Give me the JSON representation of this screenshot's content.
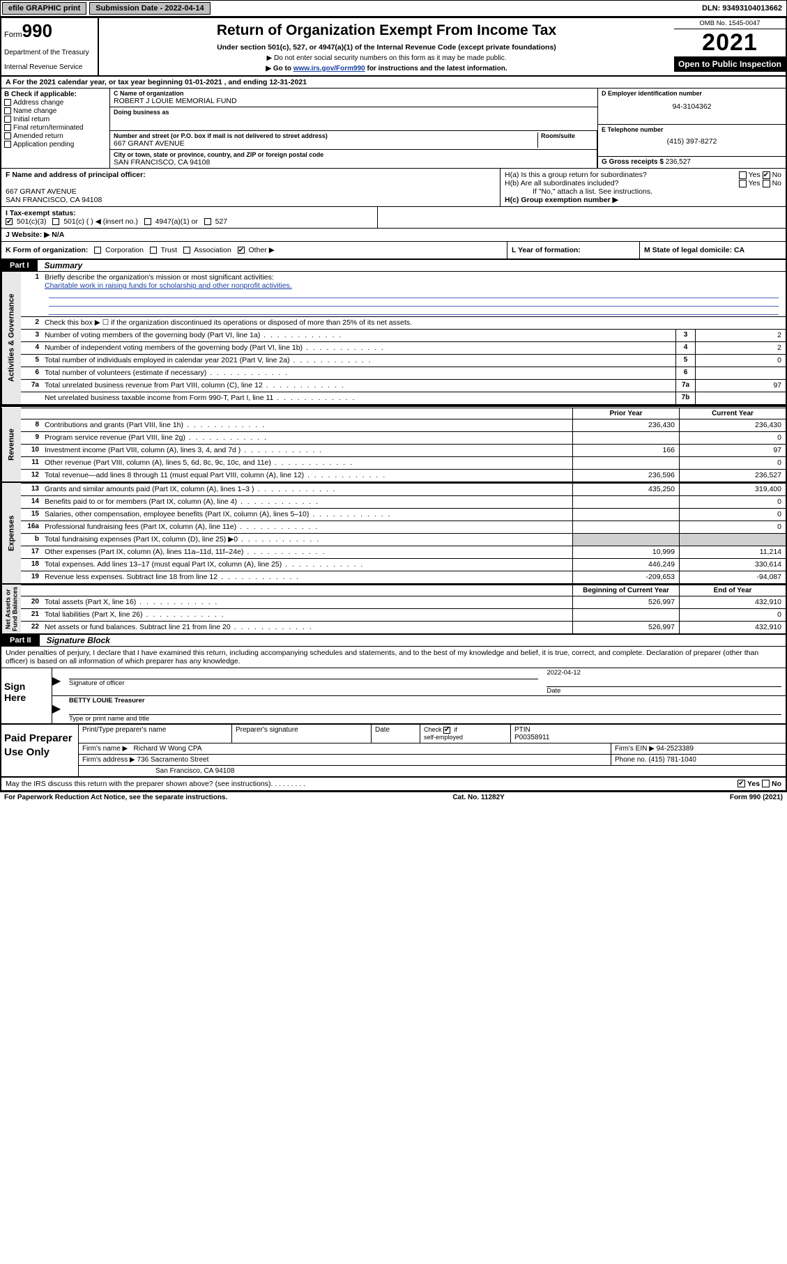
{
  "topbar": {
    "efile": "efile GRAPHIC print",
    "subdate_label": "Submission Date - 2022-04-14",
    "dln": "DLN: 93493104013662"
  },
  "header": {
    "form_label": "Form",
    "form_no": "990",
    "dept": "Department of the Treasury",
    "irs": "Internal Revenue Service",
    "title": "Return of Organization Exempt From Income Tax",
    "subtitle": "Under section 501(c), 527, or 4947(a)(1) of the Internal Revenue Code (except private foundations)",
    "instr1": "▶ Do not enter social security numbers on this form as it may be made public.",
    "instr2_pre": "▶ Go to ",
    "instr2_link": "www.irs.gov/Form990",
    "instr2_post": " for instructions and the latest information.",
    "omb": "OMB No. 1545-0047",
    "year": "2021",
    "openpub": "Open to Public Inspection"
  },
  "rowA": "A For the 2021 calendar year, or tax year beginning 01-01-2021   , and ending 12-31-2021",
  "boxB": {
    "hdr": "B Check if applicable:",
    "items": [
      "Address change",
      "Name change",
      "Initial return",
      "Final return/terminated",
      "Amended return",
      "Application pending"
    ]
  },
  "boxC": {
    "name_lbl": "C Name of organization",
    "name": "ROBERT J LOUIE MEMORIAL FUND",
    "dba_lbl": "Doing business as",
    "dba": "",
    "street_lbl": "Number and street (or P.O. box if mail is not delivered to street address)",
    "room_lbl": "Room/suite",
    "street": "667 GRANT AVENUE",
    "city_lbl": "City or town, state or province, country, and ZIP or foreign postal code",
    "city": "SAN FRANCISCO, CA  94108"
  },
  "boxD": {
    "ein_lbl": "D Employer identification number",
    "ein": "94-3104362",
    "phone_lbl": "E Telephone number",
    "phone": "(415) 397-8272",
    "gross_lbl": "G Gross receipts $",
    "gross": "236,527"
  },
  "boxF": {
    "lbl": "F Name and address of principal officer:",
    "line1": "667 GRANT AVENUE",
    "line2": "SAN FRANCISCO, CA  94108"
  },
  "boxH": {
    "a": "H(a)  Is this a group return for subordinates?",
    "b": "H(b)  Are all subordinates included?",
    "note": "If \"No,\" attach a list. See instructions.",
    "c": "H(c)  Group exemption number ▶"
  },
  "boxI": {
    "lbl": "I    Tax-exempt status:",
    "opts": [
      "501(c)(3)",
      "501(c) (  ) ◀ (insert no.)",
      "4947(a)(1) or",
      "527"
    ]
  },
  "boxJ": {
    "lbl": "J    Website: ▶",
    "val": " N/A"
  },
  "boxK": "K Form of organization:",
  "k_opts": [
    "Corporation",
    "Trust",
    "Association",
    "Other ▶"
  ],
  "boxL": "L Year of formation:",
  "boxM": "M State of legal domicile: CA",
  "partI": {
    "hdr": "Part I",
    "title": "Summary"
  },
  "summary": {
    "governance": {
      "l1": "Briefly describe the organization's mission or most significant activities:",
      "mission": "Charitable work in raising funds for scholarship and other nonprofit activities.",
      "l2": "Check this box ▶ ☐  if the organization discontinued its operations or disposed of more than 25% of its net assets.",
      "rows": [
        {
          "n": "3",
          "t": "Number of voting members of the governing body (Part VI, line 1a)",
          "r": "3",
          "v": "2"
        },
        {
          "n": "4",
          "t": "Number of independent voting members of the governing body (Part VI, line 1b)",
          "r": "4",
          "v": "2"
        },
        {
          "n": "5",
          "t": "Total number of individuals employed in calendar year 2021 (Part V, line 2a)",
          "r": "5",
          "v": "0"
        },
        {
          "n": "6",
          "t": "Total number of volunteers (estimate if necessary)",
          "r": "6",
          "v": ""
        },
        {
          "n": "7a",
          "t": "Total unrelated business revenue from Part VIII, column (C), line 12",
          "r": "7a",
          "v": "97"
        },
        {
          "n": "",
          "t": "Net unrelated business taxable income from Form 990-T, Part I, line 11",
          "r": "7b",
          "v": ""
        }
      ]
    },
    "col_hdr_prior": "Prior Year",
    "col_hdr_current": "Current Year",
    "revenue": [
      {
        "n": "8",
        "t": "Contributions and grants (Part VIII, line 1h)",
        "p": "236,430",
        "c": "236,430"
      },
      {
        "n": "9",
        "t": "Program service revenue (Part VIII, line 2g)",
        "p": "",
        "c": "0"
      },
      {
        "n": "10",
        "t": "Investment income (Part VIII, column (A), lines 3, 4, and 7d )",
        "p": "166",
        "c": "97"
      },
      {
        "n": "11",
        "t": "Other revenue (Part VIII, column (A), lines 5, 6d, 8c, 9c, 10c, and 11e)",
        "p": "",
        "c": "0"
      },
      {
        "n": "12",
        "t": "Total revenue—add lines 8 through 11 (must equal Part VIII, column (A), line 12)",
        "p": "236,596",
        "c": "236,527"
      }
    ],
    "expenses": [
      {
        "n": "13",
        "t": "Grants and similar amounts paid (Part IX, column (A), lines 1–3 )",
        "p": "435,250",
        "c": "319,400"
      },
      {
        "n": "14",
        "t": "Benefits paid to or for members (Part IX, column (A), line 4)",
        "p": "",
        "c": "0"
      },
      {
        "n": "15",
        "t": "Salaries, other compensation, employee benefits (Part IX, column (A), lines 5–10)",
        "p": "",
        "c": "0"
      },
      {
        "n": "16a",
        "t": "Professional fundraising fees (Part IX, column (A), line 11e)",
        "p": "",
        "c": "0"
      },
      {
        "n": "b",
        "t": "Total fundraising expenses (Part IX, column (D), line 25) ▶0",
        "p": "GREY",
        "c": "GREY"
      },
      {
        "n": "17",
        "t": "Other expenses (Part IX, column (A), lines 11a–11d, 11f–24e)",
        "p": "10,999",
        "c": "11,214"
      },
      {
        "n": "18",
        "t": "Total expenses. Add lines 13–17 (must equal Part IX, column (A), line 25)",
        "p": "446,249",
        "c": "330,614"
      },
      {
        "n": "19",
        "t": "Revenue less expenses. Subtract line 18 from line 12",
        "p": "-209,653",
        "c": "-94,087"
      }
    ],
    "col_hdr_begin": "Beginning of Current Year",
    "col_hdr_end": "End of Year",
    "netassets": [
      {
        "n": "20",
        "t": "Total assets (Part X, line 16)",
        "p": "526,997",
        "c": "432,910"
      },
      {
        "n": "21",
        "t": "Total liabilities (Part X, line 26)",
        "p": "",
        "c": "0"
      },
      {
        "n": "22",
        "t": "Net assets or fund balances. Subtract line 21 from line 20",
        "p": "526,997",
        "c": "432,910"
      }
    ]
  },
  "partII": {
    "hdr": "Part II",
    "title": "Signature Block"
  },
  "sig": {
    "intro": "Under penalties of perjury, I declare that I have examined this return, including accompanying schedules and statements, and to the best of my knowledge and belief, it is true, correct, and complete. Declaration of preparer (other than officer) is based on all information of which preparer has any knowledge.",
    "here": "Sign Here",
    "sig_of": "Signature of officer",
    "date_lbl": "Date",
    "date": "2022-04-12",
    "name_title": "BETTY LOUIE  Treasurer",
    "type_lbl": "Type or print name and title"
  },
  "prep": {
    "label": "Paid Preparer Use Only",
    "print_lbl": "Print/Type preparer's name",
    "prep_sig": "Preparer's signature",
    "date_lbl": "Date",
    "check_lbl": "Check ☑ if self-employed",
    "ptin_lbl": "PTIN",
    "ptin": "P00358911",
    "firm_name_lbl": "Firm's name     ▶",
    "firm_name": "Richard W Wong CPA",
    "firm_ein_lbl": "Firm's EIN ▶",
    "firm_ein": "94-2523389",
    "firm_addr_lbl": "Firm's address ▶",
    "firm_addr1": "736 Sacramento Street",
    "firm_addr2": "San Francisco, CA  94108",
    "phone_lbl": "Phone no.",
    "phone": "(415) 781-1040"
  },
  "footerq": "May the IRS discuss this return with the preparer shown above? (see instructions)",
  "bottom": {
    "left": "For Paperwork Reduction Act Notice, see the separate instructions.",
    "mid": "Cat. No. 11282Y",
    "right": "Form 990 (2021)"
  }
}
